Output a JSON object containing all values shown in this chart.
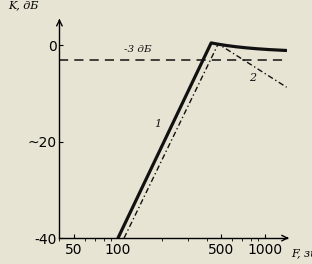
{
  "xlabel": "F, зц",
  "ylabel": "K, дБ",
  "xlim": [
    40,
    1400
  ],
  "ylim": [
    -40,
    5
  ],
  "yticks": [
    0,
    -20,
    -40
  ],
  "xticks": [
    50,
    100,
    500,
    1000
  ],
  "xticklabels": [
    "50",
    "100",
    "500",
    "1000"
  ],
  "dashed_level": -3,
  "dashed_label": "-3 дБ",
  "line1_label": "1",
  "line2_label": "2",
  "bg_color": "#e8e4d4",
  "line1_color": "#111111",
  "line2_color": "#111111",
  "dash_color": "#111111"
}
